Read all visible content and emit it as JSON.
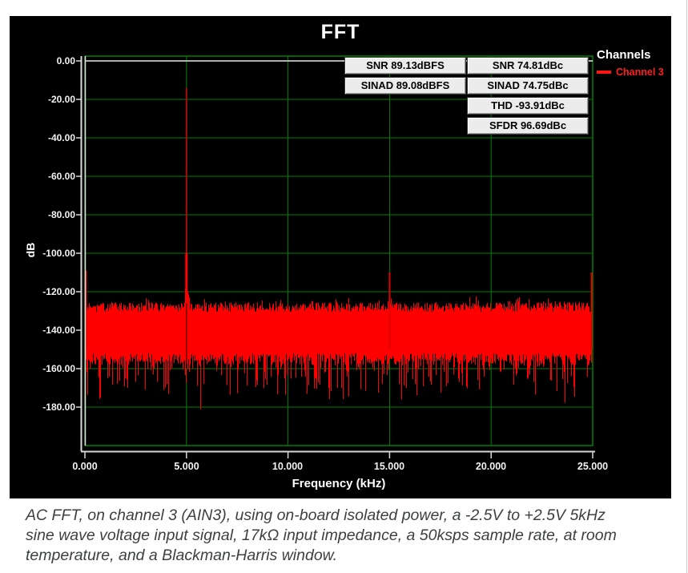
{
  "widget": {
    "title": "FFT",
    "bg_color": "#000000"
  },
  "legend": {
    "title": "Channels",
    "items": [
      {
        "label": "Channel 3",
        "color": "#ff1414"
      }
    ]
  },
  "stats": {
    "left": [
      "SNR 89.13dBFS",
      "SINAD 89.08dBFS"
    ],
    "right": [
      "SNR 74.81dBc",
      "SINAD 74.75dBc",
      "THD -93.91dBc",
      "SFDR 96.69dBc"
    ]
  },
  "axes": {
    "y": {
      "label": "dB",
      "ticks": [
        "0.00",
        "-20.00",
        "-40.00",
        "-60.00",
        "-80.00",
        "-100.00",
        "-120.00",
        "-140.00",
        "-160.00",
        "-180.00"
      ]
    },
    "x": {
      "label": "Frequency (kHz)",
      "ticks": [
        "0.000",
        "5.000",
        "10.000",
        "15.000",
        "20.000",
        "25.000"
      ]
    }
  },
  "caption": {
    "lines": [
      "AC FFT, on channel 3 (AIN3), using on-board isolated power, a -2.5V to +2.5V 5kHz",
      "sine wave voltage input signal, 17kΩ input impedance, a 50ksps sample rate, at room",
      "temperature, and a Blackman-Harris window."
    ],
    "text": "AC FFT, on channel 3 (AIN3), using on-board isolated power, a -2.5V to +2.5V 5kHz sine wave voltage input signal, 17kΩ input impedance, a 50ksps sample rate, at room temperature, and a Blackman-Harris window."
  },
  "chart_data": {
    "type": "line",
    "title": "FFT",
    "xlabel": "Frequency (kHz)",
    "ylabel": "dB",
    "xlim": [
      0,
      25
    ],
    "ylim": [
      -200,
      0
    ],
    "grid": {
      "on": true,
      "color": "#008000",
      "x_step_khz": 5,
      "y_step_db": 20
    },
    "axis_color": "#d8d8d8",
    "legend_position": "top-right",
    "series": [
      {
        "name": "Channel 3",
        "color": "#ff0000",
        "peaks": [
          {
            "freq_khz": 0.0,
            "db": -109
          },
          {
            "freq_khz": 5.0,
            "db": -14
          },
          {
            "freq_khz": 15.0,
            "db": -110
          },
          {
            "freq_khz": 25.0,
            "db": -110
          }
        ],
        "noise_floor": {
          "band_top_db": -128,
          "band_top_jitter_db": 2.5,
          "band_bottom_db": -152,
          "band_bottom_jitter_db": 6,
          "spike_prob": 0.3,
          "spike_depth_db": 18,
          "deep_spike_prob": 0.05,
          "deep_spike_extra_db": 12,
          "min_db": -190
        }
      }
    ],
    "measurements": {
      "snr_dbfs": 89.13,
      "sinad_dbfs": 89.08,
      "snr_dbc": 74.81,
      "sinad_dbc": 74.75,
      "thd_dbc": -93.91,
      "sfdr_dbc": 96.69
    }
  }
}
